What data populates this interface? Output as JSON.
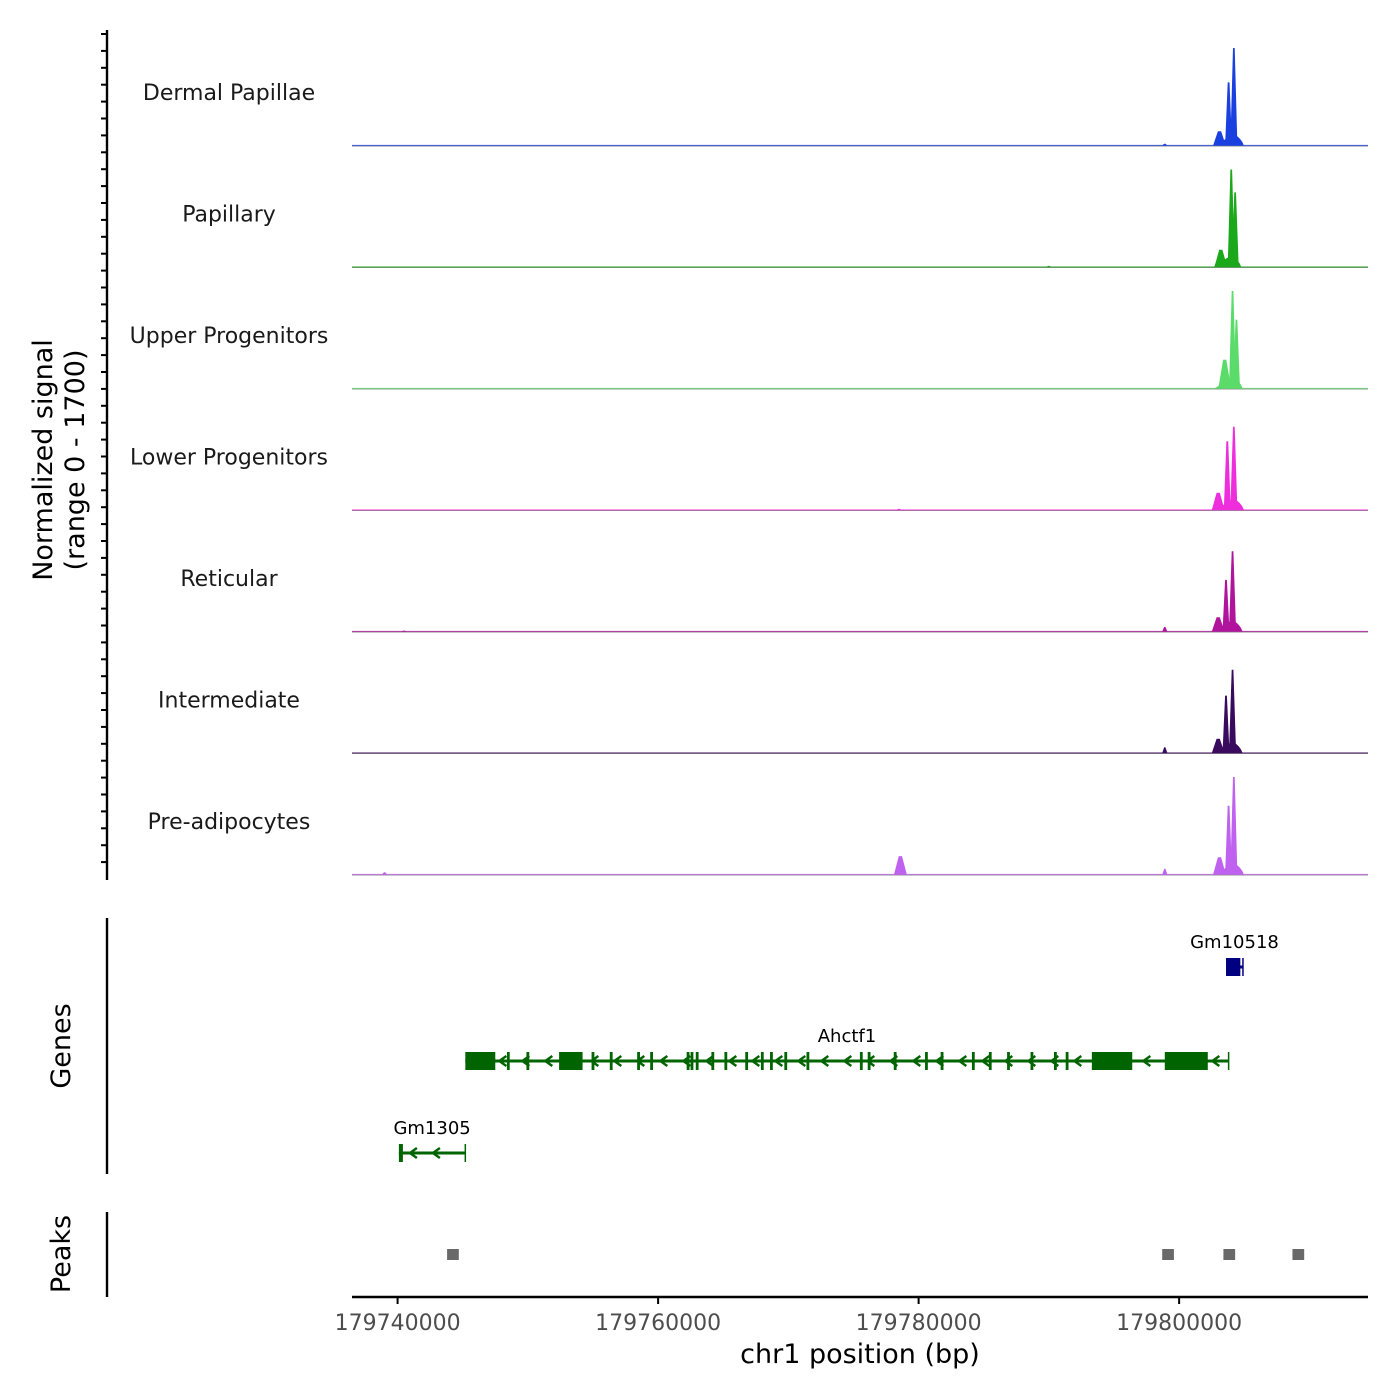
{
  "chart_data": {
    "type": "area",
    "title": "",
    "xlabel": "chr1 position (bp)",
    "xlim": [
      179736500,
      179814500
    ],
    "x_ticks": [
      179740000,
      179760000,
      179780000,
      179800000
    ],
    "x_tick_labels": [
      "179740000",
      "179760000",
      "179780000",
      "179800000"
    ],
    "coverage": {
      "ylabel": "Normalized signal\n(range 0 - 1700)",
      "ylabel_line1": "Normalized signal",
      "ylabel_line2": "(range 0 - 1700)",
      "ylim": [
        0,
        1700
      ],
      "tracks": [
        {
          "name": "Dermal Papillae",
          "color": "#1A40E0",
          "peaks": [
            {
              "x": 179804200,
              "y": 1700
            },
            {
              "x": 179803800,
              "y": 1100
            },
            {
              "x": 179803100,
              "y": 250
            }
          ],
          "minor": [
            {
              "x": 179798900,
              "y": 30
            }
          ]
        },
        {
          "name": "Papillary",
          "color": "#1BA81B",
          "peaks": [
            {
              "x": 179804000,
              "y": 1700
            },
            {
              "x": 179804300,
              "y": 1300
            },
            {
              "x": 179803200,
              "y": 300
            }
          ],
          "minor": [
            {
              "x": 179790000,
              "y": 20
            }
          ]
        },
        {
          "name": "Upper Progenitors",
          "color": "#5BDB6A",
          "peaks": [
            {
              "x": 179804100,
              "y": 1700
            },
            {
              "x": 179803500,
              "y": 500
            },
            {
              "x": 179804400,
              "y": 1200
            }
          ],
          "minor": []
        },
        {
          "name": "Lower Progenitors",
          "color": "#EE2EDC",
          "peaks": [
            {
              "x": 179804200,
              "y": 1450
            },
            {
              "x": 179803700,
              "y": 1200
            },
            {
              "x": 179803000,
              "y": 300
            }
          ],
          "minor": [
            {
              "x": 179778500,
              "y": 20
            }
          ]
        },
        {
          "name": "Reticular",
          "color": "#B0149C",
          "peaks": [
            {
              "x": 179804100,
              "y": 1400
            },
            {
              "x": 179803600,
              "y": 900
            },
            {
              "x": 179803000,
              "y": 250
            }
          ],
          "minor": [
            {
              "x": 179798900,
              "y": 80
            },
            {
              "x": 179740500,
              "y": 15
            }
          ]
        },
        {
          "name": "Intermediate",
          "color": "#3A0A5E",
          "peaks": [
            {
              "x": 179804100,
              "y": 1450
            },
            {
              "x": 179803600,
              "y": 1000
            },
            {
              "x": 179803000,
              "y": 250
            }
          ],
          "minor": [
            {
              "x": 179798900,
              "y": 100
            }
          ]
        },
        {
          "name": "Pre-adipocytes",
          "color": "#C062F0",
          "peaks": [
            {
              "x": 179804200,
              "y": 1700
            },
            {
              "x": 179803800,
              "y": 1200
            },
            {
              "x": 179803100,
              "y": 300
            }
          ],
          "minor": [
            {
              "x": 179778600,
              "y": 320
            },
            {
              "x": 179798900,
              "y": 100
            },
            {
              "x": 179739000,
              "y": 40
            }
          ]
        }
      ]
    },
    "genes": {
      "ylabel": "Genes",
      "items": [
        {
          "name": "Gm10518",
          "start": 179803600,
          "end": 179804900,
          "strand": "+",
          "color": "#000080",
          "row": 1,
          "exons": [
            [
              179803600,
              179804700
            ]
          ]
        },
        {
          "name": "Ahctf1",
          "start": 179745200,
          "end": 179803800,
          "strand": "-",
          "color": "#006400",
          "row": 2,
          "exons": [
            [
              179745200,
              179747500
            ],
            [
              179752400,
              179754200
            ],
            [
              179793300,
              179796400
            ],
            [
              179798900,
              179802200
            ]
          ],
          "small_exons": [
            179748500,
            179750000,
            179755000,
            179756400,
            179758500,
            179759500,
            179762300,
            179762600,
            179763000,
            179764200,
            179765200,
            179766800,
            179768000,
            179768700,
            179769800,
            179771500,
            179775600,
            179776200,
            179778200,
            179780600,
            179781800,
            179784200,
            179785500,
            179786900,
            179788700,
            179790500,
            179791400
          ]
        },
        {
          "name": "Gm1305",
          "start": 179740100,
          "end": 179745200,
          "strand": "-",
          "color": "#006400",
          "row": 3,
          "exons": [
            [
              179740100,
              179740400
            ]
          ]
        }
      ]
    },
    "peaks": {
      "ylabel": "Peaks",
      "items": [
        {
          "start": 179743800,
          "end": 179744700
        },
        {
          "start": 179798700,
          "end": 179799600
        },
        {
          "start": 179803400,
          "end": 179804300
        },
        {
          "start": 179808700,
          "end": 179809600
        }
      ],
      "color": "#696969"
    }
  }
}
